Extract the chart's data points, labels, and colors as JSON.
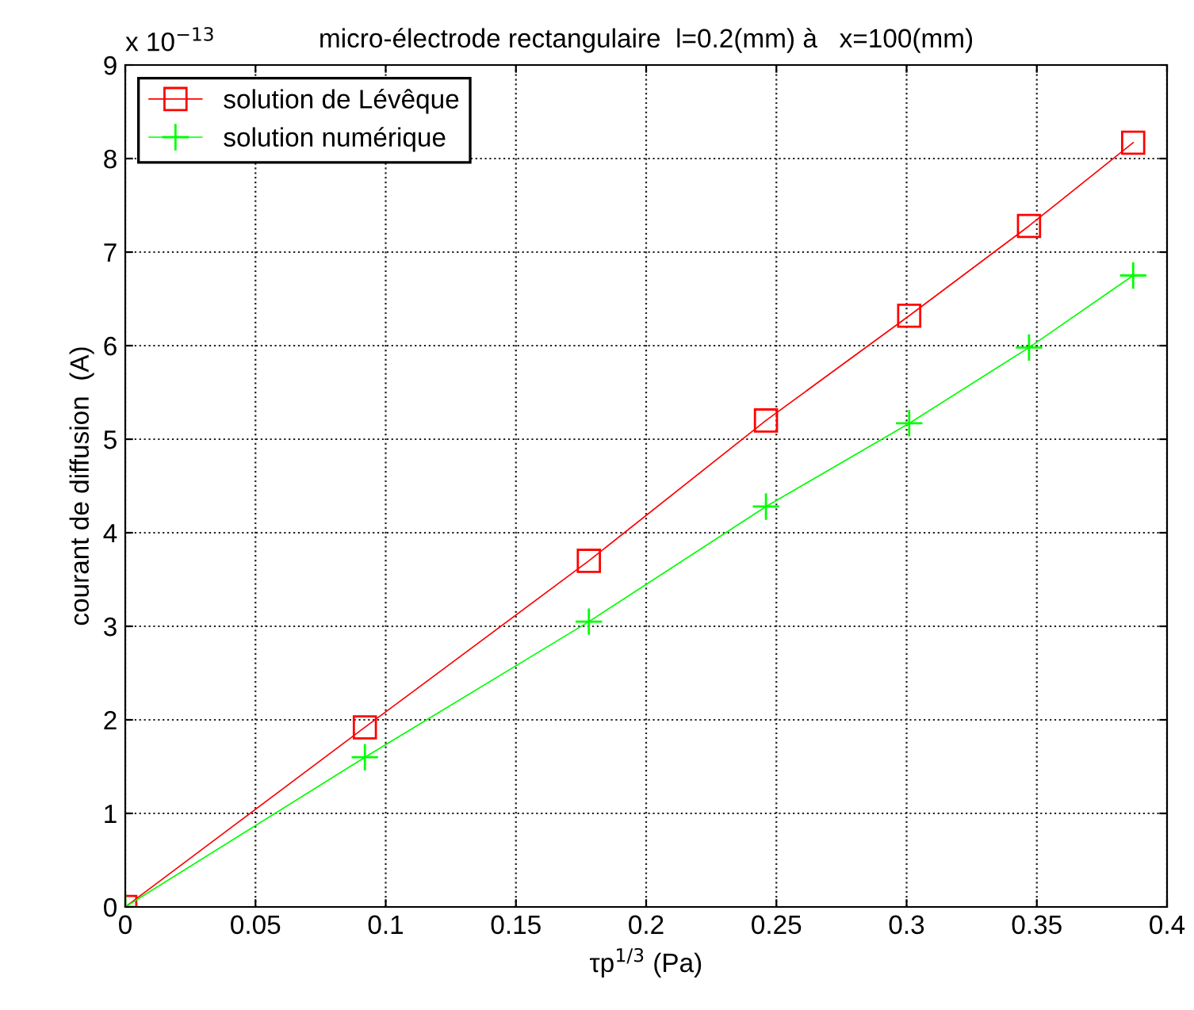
{
  "chart_data": {
    "type": "line",
    "title": "micro-électrode rectangulaire  l=0.2(mm) à   x=100(mm)",
    "xlabel": "τp$^{1/3}$ (Pa)",
    "ylabel": "courant de diffusion  (A)",
    "annotations": [
      "x 10$^{−13}$"
    ],
    "x": [
      0,
      0.092,
      0.178,
      0.246,
      0.301,
      0.347,
      0.387
    ],
    "series": [
      {
        "name": "solution de Lévêque",
        "color": "#ff0000",
        "marker": "square",
        "values": [
          0,
          1.92,
          3.7,
          5.2,
          6.32,
          7.28,
          8.17
        ]
      },
      {
        "name": "solution numérique",
        "color": "#00ff00",
        "marker": "cross",
        "values": [
          0,
          1.6,
          3.05,
          4.28,
          5.17,
          5.98,
          6.75
        ]
      }
    ],
    "xlim": [
      0,
      0.4
    ],
    "xticks": [
      0,
      0.05,
      0.1,
      0.15,
      0.2,
      0.25,
      0.3,
      0.35,
      0.4
    ],
    "ylim": [
      0,
      9
    ],
    "yticks": [
      0,
      1,
      2,
      3,
      4,
      5,
      6,
      7,
      8,
      9
    ],
    "grid": true,
    "legend": "top left",
    "line_style": "solid"
  }
}
